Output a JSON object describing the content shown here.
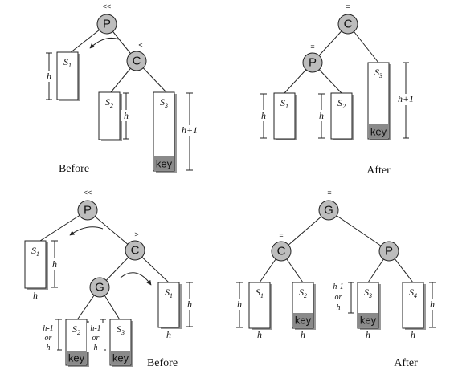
{
  "symbols": {
    "double_left": "<<",
    "left": "<",
    "right": ">",
    "equal": "=",
    "key": "key",
    "h": "h",
    "h_plus_1": "h+1",
    "h_minus_1": "h-1",
    "or": "or"
  },
  "nodes": {
    "P": "P",
    "C": "C",
    "G": "G"
  },
  "subtrees": {
    "S1": "S",
    "S2": "S",
    "S3": "S",
    "S4": "S",
    "sub1": "1",
    "sub2": "2",
    "sub3": "3",
    "sub4": "4"
  },
  "captions": {
    "before": "Before",
    "after": "After"
  },
  "colors": {
    "node_fill": "#bdbdbd",
    "key_fill": "#8a8a8a",
    "shadow": "#9a9a9a"
  }
}
